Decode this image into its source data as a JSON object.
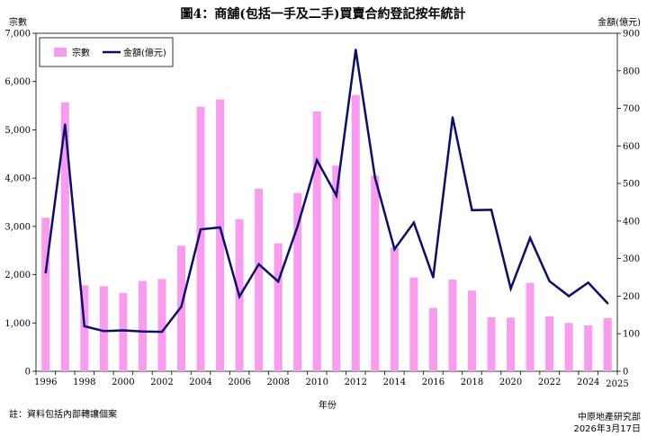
{
  "chart_data": {
    "type": "bar",
    "title": "圖4：商舖(包括一手及二手)買賣合約登記按年統計",
    "xlabel": "年份",
    "y_left_label": "宗數",
    "y_right_label": "金額(億元)",
    "ylim_left": [
      0,
      7000
    ],
    "ylim_right": [
      0,
      900
    ],
    "grid": false,
    "legend_position": "top-left",
    "x": [
      1996,
      1997,
      1998,
      1999,
      2000,
      2001,
      2002,
      2003,
      2004,
      2005,
      2006,
      2007,
      2008,
      2009,
      2010,
      2011,
      2012,
      2013,
      2014,
      2015,
      2016,
      2017,
      2018,
      2019,
      2020,
      2021,
      2022,
      2023,
      2024,
      2025
    ],
    "x_tick_labels": [
      "1996",
      "1998",
      "2000",
      "2002",
      "2004",
      "2006",
      "2008",
      "2010",
      "2012",
      "2014",
      "2016",
      "2018",
      "2020",
      "2022",
      "2024",
      "2025"
    ],
    "y_left_tick_labels": [
      "0",
      "1,000",
      "2,000",
      "3,000",
      "4,000",
      "5,000",
      "6,000",
      "7,000"
    ],
    "y_right_tick_labels": [
      "0",
      "100",
      "200",
      "300",
      "400",
      "500",
      "600",
      "700",
      "800",
      "900"
    ],
    "series": [
      {
        "name": "宗數",
        "type": "bar",
        "axis": "left",
        "color": "#f99cf0",
        "values": [
          3180,
          5570,
          1780,
          1760,
          1620,
          1870,
          1910,
          2600,
          5480,
          5630,
          3150,
          3780,
          2650,
          3690,
          5380,
          4260,
          5720,
          4050,
          2560,
          1940,
          1310,
          1900,
          1670,
          1120,
          1110,
          1830,
          1140,
          1000,
          950,
          1100
        ]
      },
      {
        "name": "金額(億元)",
        "type": "line",
        "axis": "right",
        "color": "#0d0d6b",
        "values": [
          263,
          657,
          120,
          107,
          109,
          106,
          105,
          172,
          378,
          383,
          199,
          285,
          239,
          386,
          562,
          468,
          856,
          515,
          325,
          396,
          250,
          676,
          429,
          430,
          220,
          355,
          240,
          200,
          236,
          181
        ]
      }
    ]
  },
  "footer": {
    "note": "註：資料包括內部轉讓個案",
    "source": "中原地產研究部",
    "date": "2026年3月17日"
  }
}
